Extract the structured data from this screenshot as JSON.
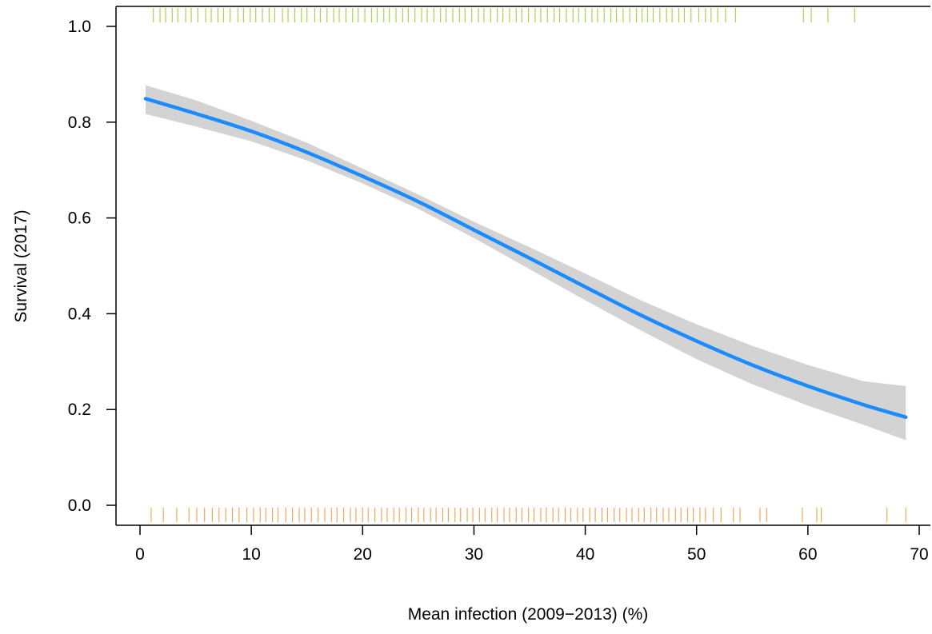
{
  "chart_data": {
    "type": "line",
    "title": "",
    "xlabel": "Mean infection (2009−2013) (%)",
    "ylabel": "Survival (2017)",
    "xlim": [
      0,
      70
    ],
    "ylim": [
      0,
      1
    ],
    "x_ticks": [
      0,
      10,
      20,
      30,
      40,
      50,
      60,
      70
    ],
    "y_ticks": [
      0.0,
      0.2,
      0.4,
      0.6,
      0.8,
      1.0
    ],
    "x_tick_labels": [
      "0",
      "10",
      "20",
      "30",
      "40",
      "50",
      "60",
      "70"
    ],
    "y_tick_labels": [
      "0.0",
      "0.2",
      "0.4",
      "0.6",
      "0.8",
      "1.0"
    ],
    "grid": false,
    "legend": "none",
    "colors": {
      "curve": "#1a8cff",
      "ribbon": "#d3d3d3",
      "rug_survived": "#a6d64d",
      "rug_died": "#f2a65a"
    },
    "series": [
      {
        "type": "line",
        "x": [
          0.5,
          5,
          10,
          15,
          20,
          25,
          30,
          35,
          40,
          45,
          50,
          55,
          60,
          65,
          68.8
        ],
        "y": [
          0.849,
          0.818,
          0.781,
          0.737,
          0.687,
          0.634,
          0.575,
          0.516,
          0.456,
          0.397,
          0.343,
          0.293,
          0.249,
          0.21,
          0.184
        ],
        "ci_lower": [
          0.817,
          0.791,
          0.76,
          0.72,
          0.672,
          0.619,
          0.558,
          0.493,
          0.428,
          0.365,
          0.305,
          0.253,
          0.208,
          0.168,
          0.136
        ],
        "ci_upper": [
          0.877,
          0.846,
          0.803,
          0.757,
          0.703,
          0.649,
          0.592,
          0.539,
          0.484,
          0.428,
          0.378,
          0.333,
          0.293,
          0.259,
          0.249
        ]
      }
    ],
    "rug_survived_x": [
      1.2,
      1.8,
      2.3,
      2.9,
      3.4,
      4.1,
      4.6,
      5.2,
      5.9,
      6.4,
      7.0,
      7.5,
      8.1,
      8.8,
      9.3,
      9.9,
      10.4,
      11.0,
      11.6,
      12.1,
      12.8,
      13.3,
      13.9,
      14.5,
      15.0,
      15.7,
      16.2,
      16.8,
      17.4,
      17.9,
      18.5,
      19.1,
      19.6,
      20.2,
      20.8,
      21.3,
      21.9,
      22.4,
      23.0,
      23.6,
      24.1,
      24.7,
      25.3,
      25.8,
      26.4,
      27.0,
      27.5,
      28.1,
      28.7,
      29.2,
      29.8,
      30.4,
      30.9,
      31.5,
      32.1,
      32.6,
      33.2,
      33.8,
      34.3,
      34.9,
      35.5,
      36.0,
      36.6,
      37.2,
      37.7,
      38.3,
      38.9,
      39.4,
      40.0,
      40.6,
      41.1,
      41.7,
      42.3,
      42.8,
      43.4,
      44.0,
      44.6,
      45.1,
      45.6,
      46.1,
      46.7,
      47.3,
      47.8,
      48.4,
      48.9,
      49.5,
      50.2,
      50.8,
      51.3,
      51.9,
      52.6,
      53.5,
      59.6,
      60.3,
      61.8,
      64.2
    ],
    "rug_died_x": [
      1.0,
      2.1,
      3.3,
      4.4,
      5.1,
      5.8,
      6.5,
      7.1,
      7.7,
      8.3,
      8.9,
      9.6,
      10.2,
      10.8,
      11.3,
      11.9,
      12.4,
      13.1,
      13.7,
      14.3,
      14.8,
      15.4,
      16.0,
      16.6,
      17.2,
      17.7,
      18.3,
      18.9,
      19.4,
      20.0,
      20.5,
      21.1,
      21.7,
      22.2,
      22.8,
      23.3,
      23.9,
      24.4,
      25.0,
      25.5,
      26.1,
      26.6,
      27.2,
      27.7,
      28.3,
      28.8,
      29.4,
      29.9,
      30.5,
      31.0,
      31.6,
      32.1,
      32.7,
      33.2,
      33.8,
      34.3,
      34.9,
      35.4,
      36.0,
      36.5,
      37.1,
      37.6,
      38.2,
      38.7,
      39.3,
      39.8,
      40.4,
      40.9,
      41.5,
      42.0,
      42.6,
      43.1,
      43.7,
      44.2,
      44.8,
      45.3,
      45.9,
      46.4,
      47.0,
      47.5,
      48.1,
      48.6,
      49.2,
      49.7,
      50.3,
      50.8,
      51.5,
      52.2,
      53.3,
      53.9,
      55.7,
      56.3,
      59.5,
      60.8,
      61.2,
      67.1,
      68.8
    ]
  }
}
